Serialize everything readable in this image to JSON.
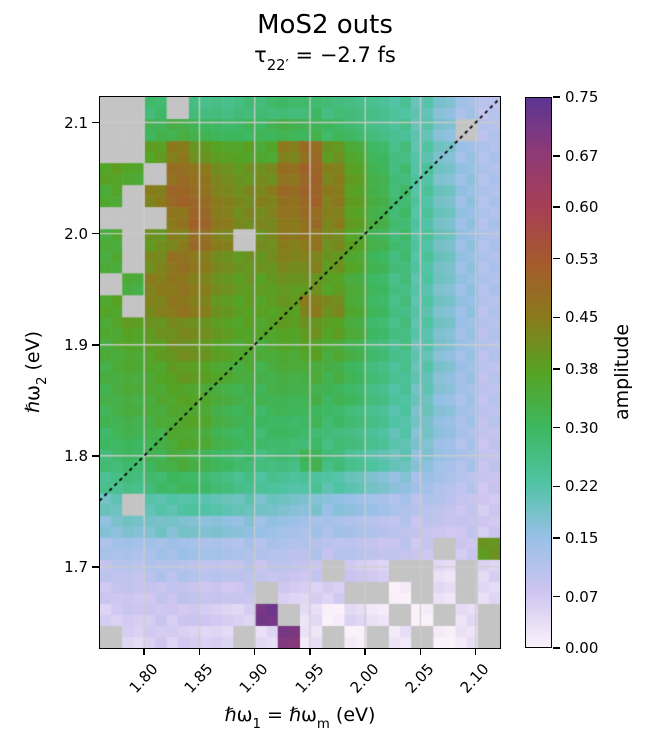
{
  "title": "MoS2 outs",
  "subtitle_parts": {
    "base": "τ",
    "subscript": "22′",
    "rest": " = −2.7 fs"
  },
  "ylabel_parts": {
    "base": "ℏω",
    "sub": "2",
    "unit": " (eV)"
  },
  "xlabel_parts": {
    "base1": "ℏω",
    "sub1": "1",
    "base2": " = ℏω",
    "sub2": "m",
    "unit": " (eV)"
  },
  "colorbar_label": "amplitude",
  "chart_data": {
    "type": "heatmap",
    "title": "MoS2 outs",
    "subtitle": "τ22′ = −2.7 fs",
    "xlabel": "ℏω1 = ℏωm (eV)",
    "ylabel": "ℏω2 (eV)",
    "colorbar_label": "amplitude",
    "x_range": [
      1.76,
      2.122
    ],
    "y_range": [
      1.627,
      2.123
    ],
    "xticks": [
      1.8,
      1.85,
      1.9,
      1.95,
      2.0,
      2.05,
      2.1
    ],
    "xtick_labels": [
      "1.80",
      "1.85",
      "1.90",
      "1.95",
      "2.00",
      "2.05",
      "2.10"
    ],
    "yticks": [
      2.1,
      2.0,
      1.9,
      1.8,
      1.7
    ],
    "ytick_labels": [
      "2.1",
      "2.0",
      "1.9",
      "1.8",
      "1.7"
    ],
    "clim": [
      0.0,
      0.75
    ],
    "colorbar_ticks": [
      0.75,
      0.67,
      0.6,
      0.53,
      0.45,
      0.38,
      0.3,
      0.22,
      0.15,
      0.07,
      0.0
    ],
    "colorbar_tick_labels": [
      "0.75",
      "0.67",
      "0.60",
      "0.53",
      "0.45",
      "0.38",
      "0.30",
      "0.22",
      "0.15",
      "0.07",
      "0.00"
    ],
    "colormap_stops": [
      [
        0.0,
        "#fbf1fa"
      ],
      [
        0.075,
        "#cdc5f0"
      ],
      [
        0.15,
        "#99c0e7"
      ],
      [
        0.225,
        "#4fc3a3"
      ],
      [
        0.3,
        "#3db75f"
      ],
      [
        0.375,
        "#55a323"
      ],
      [
        0.45,
        "#8a7a1c"
      ],
      [
        0.525,
        "#a55a2d"
      ],
      [
        0.6,
        "#a63f55"
      ],
      [
        0.675,
        "#8e3a75"
      ],
      [
        0.75,
        "#5c3594"
      ]
    ],
    "masked_color": "#c4c4c4",
    "grid_color": "rgba(205,205,205,0.9)",
    "diagonal_line": {
      "type": "identity y=x",
      "style": "dotted",
      "color": "#000000"
    },
    "legend_position": "colorbar-right",
    "values_order": "rows listed from y max (top, 2.12 eV) to y min (bottom, 1.63 eV); null = masked (grey)",
    "rows": 25,
    "cols": 18,
    "values": [
      [
        null,
        null,
        0.28,
        null,
        0.26,
        0.26,
        0.27,
        0.28,
        0.28,
        0.28,
        0.27,
        0.26,
        0.25,
        0.23,
        0.21,
        0.17,
        0.13,
        0.1
      ],
      [
        null,
        null,
        0.31,
        0.33,
        0.31,
        0.3,
        0.3,
        0.31,
        0.32,
        0.31,
        0.3,
        0.28,
        0.26,
        0.24,
        0.21,
        0.17,
        null,
        0.11
      ],
      [
        null,
        null,
        0.38,
        0.45,
        0.4,
        0.38,
        0.37,
        0.36,
        0.44,
        0.48,
        0.4,
        0.35,
        0.3,
        0.26,
        0.22,
        0.18,
        0.14,
        0.12
      ],
      [
        0.38,
        0.36,
        null,
        0.48,
        0.46,
        0.42,
        0.4,
        0.42,
        0.47,
        0.5,
        0.44,
        0.38,
        0.32,
        0.27,
        0.23,
        0.18,
        0.15,
        0.12
      ],
      [
        0.36,
        null,
        0.44,
        0.5,
        0.48,
        0.44,
        0.42,
        0.44,
        0.48,
        0.5,
        0.45,
        0.38,
        0.33,
        0.28,
        0.23,
        0.19,
        0.15,
        0.12
      ],
      [
        null,
        null,
        null,
        0.46,
        0.5,
        0.45,
        0.42,
        0.43,
        0.46,
        0.48,
        0.44,
        0.38,
        0.33,
        0.28,
        0.23,
        0.19,
        0.15,
        0.12
      ],
      [
        0.35,
        null,
        0.4,
        0.44,
        0.48,
        0.44,
        null,
        0.42,
        0.45,
        0.46,
        0.42,
        0.37,
        0.32,
        0.28,
        0.23,
        0.19,
        0.15,
        0.12
      ],
      [
        0.35,
        null,
        0.42,
        0.47,
        0.45,
        0.42,
        0.4,
        0.41,
        0.43,
        0.43,
        0.4,
        0.36,
        0.31,
        0.27,
        0.23,
        0.19,
        0.15,
        0.12
      ],
      [
        null,
        0.34,
        0.44,
        0.46,
        0.44,
        0.41,
        0.39,
        0.39,
        0.4,
        0.4,
        0.38,
        0.34,
        0.3,
        0.26,
        0.22,
        0.18,
        0.15,
        0.12
      ],
      [
        0.37,
        null,
        0.43,
        0.46,
        0.44,
        0.4,
        0.38,
        0.38,
        0.39,
        0.44,
        0.42,
        0.35,
        0.3,
        0.26,
        0.22,
        0.18,
        0.15,
        0.11
      ],
      [
        0.36,
        0.38,
        0.4,
        0.42,
        0.41,
        0.39,
        0.37,
        0.37,
        0.38,
        0.4,
        0.38,
        0.34,
        0.29,
        0.26,
        0.22,
        0.18,
        0.14,
        0.11
      ],
      [
        0.35,
        0.36,
        0.38,
        0.41,
        0.4,
        0.38,
        0.36,
        0.35,
        0.36,
        0.37,
        0.35,
        0.32,
        0.28,
        0.25,
        0.21,
        0.17,
        0.14,
        0.11
      ],
      [
        0.34,
        0.35,
        0.36,
        0.39,
        0.38,
        0.36,
        0.34,
        0.33,
        0.34,
        0.34,
        0.33,
        0.3,
        0.27,
        0.24,
        0.21,
        0.17,
        0.14,
        0.1
      ],
      [
        0.33,
        0.34,
        0.35,
        0.37,
        0.36,
        0.34,
        0.32,
        0.32,
        0.32,
        0.32,
        0.31,
        0.29,
        0.26,
        0.23,
        0.2,
        0.16,
        0.13,
        0.1
      ],
      [
        0.32,
        0.33,
        0.34,
        0.36,
        0.36,
        0.33,
        0.31,
        0.3,
        0.3,
        0.3,
        0.29,
        0.27,
        0.25,
        0.22,
        0.19,
        0.16,
        0.13,
        0.1
      ],
      [
        0.3,
        0.31,
        0.32,
        0.36,
        0.35,
        0.32,
        0.3,
        0.29,
        0.29,
        0.28,
        0.27,
        0.26,
        0.24,
        0.21,
        0.18,
        0.15,
        0.12,
        0.09
      ],
      [
        0.28,
        0.29,
        0.31,
        0.34,
        0.32,
        0.3,
        0.28,
        0.27,
        0.27,
        0.31,
        0.27,
        0.24,
        0.22,
        0.2,
        0.17,
        0.14,
        0.12,
        0.09
      ],
      [
        0.25,
        0.26,
        0.28,
        0.3,
        0.29,
        0.27,
        0.25,
        0.24,
        0.23,
        0.23,
        0.22,
        0.2,
        0.18,
        0.16,
        0.14,
        0.12,
        0.1,
        0.08
      ],
      [
        0.2,
        null,
        0.21,
        0.22,
        0.22,
        0.21,
        0.2,
        0.19,
        0.18,
        0.17,
        0.16,
        0.15,
        0.14,
        0.12,
        0.11,
        0.1,
        0.08,
        0.07
      ],
      [
        0.17,
        0.18,
        0.18,
        0.18,
        0.17,
        0.17,
        0.16,
        0.15,
        0.14,
        0.13,
        0.13,
        0.12,
        0.11,
        0.1,
        0.09,
        0.08,
        0.08,
        0.07
      ],
      [
        0.13,
        0.13,
        0.13,
        0.14,
        0.13,
        0.13,
        0.12,
        0.12,
        0.11,
        0.11,
        0.1,
        0.1,
        0.09,
        0.09,
        0.08,
        null,
        0.07,
        0.4
      ],
      [
        0.1,
        0.1,
        0.11,
        0.11,
        0.1,
        0.1,
        0.1,
        0.09,
        0.09,
        0.08,
        null,
        0.07,
        0.06,
        null,
        null,
        0.03,
        null,
        0.05
      ],
      [
        0.08,
        0.08,
        0.08,
        0.09,
        0.08,
        0.08,
        0.08,
        null,
        0.06,
        0.05,
        0.06,
        null,
        null,
        0.0,
        null,
        0.03,
        null,
        0.04
      ],
      [
        0.06,
        0.07,
        0.07,
        0.07,
        0.07,
        0.06,
        0.05,
        0.72,
        null,
        0.03,
        0.0,
        0.04,
        0.02,
        null,
        0.0,
        null,
        0.03,
        null
      ],
      [
        null,
        0.05,
        0.06,
        0.06,
        0.05,
        0.05,
        null,
        0.04,
        0.7,
        0.02,
        null,
        0.0,
        null,
        0.02,
        null,
        0.0,
        0.02,
        null
      ]
    ]
  }
}
